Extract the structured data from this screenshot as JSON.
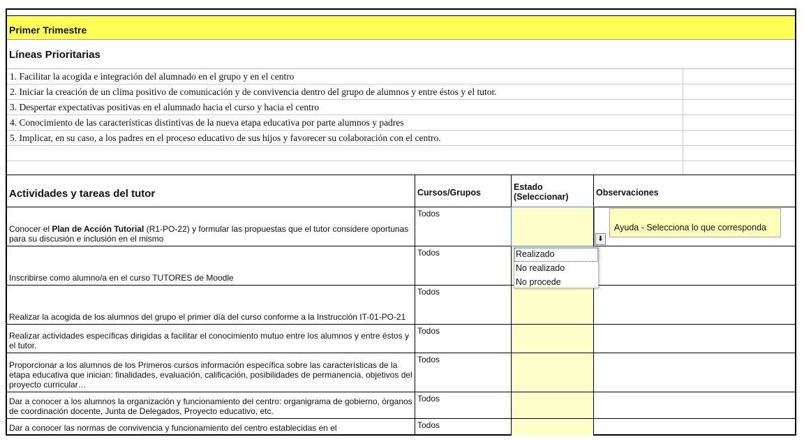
{
  "section_title": "Primer Trimestre",
  "lineas": {
    "title": "Líneas Prioritarias",
    "items": [
      "1. Facilitar la acogida e integración del alumnado en el grupo y en el centro",
      "2. Iniciar la creación de un clima positivo de comunicación y de convivencia dentro del grupo de alumnos y entre éstos y el tutor.",
      "3. Despertar expectativas positivas en el alumnado hacia el curso y hacia el centro",
      "4. Conocimiento de las características distintivas de la nueva etapa educativa por parte alumnos y padres",
      "5. Implicar, en su caso, a los padres en el proceso educativo de sus hijos y favorecer su colaboración con el centro.",
      "",
      ""
    ]
  },
  "table": {
    "headers": {
      "actividades": "Actividades y tareas del tutor",
      "cursos": "Cursos/Grupos",
      "estado": "Estado (Seleccionar)",
      "observaciones": "Observaciones"
    },
    "rows": [
      {
        "pre": "Conocer el ",
        "bold": "Plan de Acción Tutorial",
        "post": " (R1-PO-22) y formular las propuestas que el tutor considere oportunas para su discusión e inclusión en el mismo",
        "cursos": "Todos"
      },
      {
        "pre": "Inscribirse como alumno/a en el curso TUTORES de Moodle",
        "cursos": "Todos"
      },
      {
        "pre": "Realizar la acogida de los alumnos del grupo el primer día del curso conforme a la Instrucción IT-01-PO-21",
        "cursos": "Todos"
      },
      {
        "pre": "Realizar actividades específicas dirigidas a facilitar el conocimiento mutuo entre los alumnos y entre éstos y el tutor.",
        "cursos": "Todos"
      },
      {
        "pre": "Proporcionar a los alumnos de los Primeros cursos información específica sobre las características de la etapa educativa que inician: finalidades, evaluación, calificación, posibilidades de permanencia, objetivos del proyecto curricular…",
        "cursos": "Todos"
      },
      {
        "pre": "Dar a conocer a los alumnos la organización y funcionamiento del centro: organigrama de gobierno, órganos de coordinación docente, Junta de Delegados, Proyecto educativo, etc.",
        "cursos": "Todos"
      },
      {
        "pre": "Dar a conocer las normas de convivencia y funcionamiento del centro establecidas en el",
        "cursos": "Todos"
      }
    ]
  },
  "validation": {
    "tooltip": "Ayuda - Selecciona lo que corresponda",
    "options": [
      "Realizado",
      "No realizado",
      "No procede"
    ],
    "highlighted": "Realizado",
    "button_icon": "dropdown-arrow-icon"
  },
  "colors": {
    "title_bg": "#ffff55",
    "estado_bg": "#ffffcc",
    "selection": "#4a86e8"
  }
}
